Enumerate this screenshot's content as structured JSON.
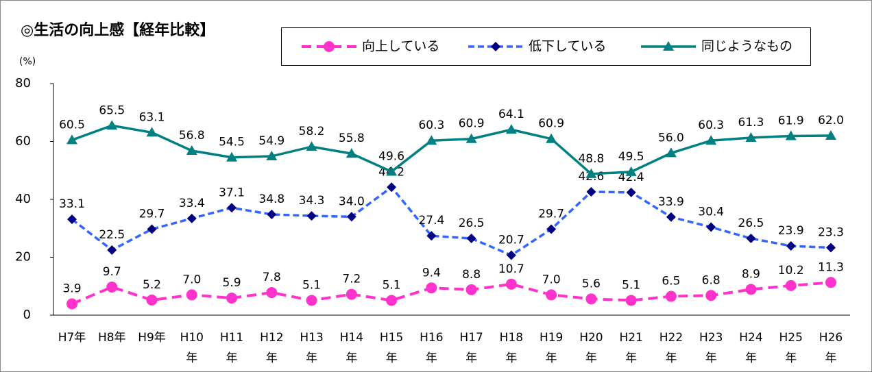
{
  "chart_data": {
    "type": "line",
    "title": "◎生活の向上感【経年比較】",
    "y_label": "(%)",
    "categories": [
      "H7年",
      "H8年",
      "H9年",
      "H10年",
      "H11年",
      "H12年",
      "H13年",
      "H14年",
      "H15年",
      "H16年",
      "H17年",
      "H18年",
      "H19年",
      "H20年",
      "H21年",
      "H22年",
      "H23年",
      "H24年",
      "H25年",
      "H26年"
    ],
    "ylim": [
      0,
      80
    ],
    "yticks": [
      0,
      20,
      40,
      60,
      80
    ],
    "grid": false,
    "series": [
      {
        "name": "向上している",
        "color": "#ff33cc",
        "marker": "circle",
        "dashed": true,
        "values": [
          3.9,
          9.7,
          5.2,
          7.0,
          5.9,
          7.8,
          5.1,
          7.2,
          5.1,
          9.4,
          8.8,
          10.7,
          7.0,
          5.6,
          5.1,
          6.5,
          6.8,
          8.9,
          10.2,
          11.3
        ],
        "value_labels": [
          "3.9",
          "9.7",
          "5.2",
          "7.0",
          "5.9",
          "7.8",
          "5.1",
          "7.2",
          "5.1",
          "9.4",
          "8.8",
          "10.7",
          "7.0",
          "5.6",
          "5.1",
          "6.5",
          "6.8",
          "8.9",
          "10.2",
          "11.3"
        ]
      },
      {
        "name": "低下している",
        "color": "#3366ff",
        "marker_color": "#000080",
        "marker": "diamond",
        "dashed": true,
        "values": [
          33.1,
          22.5,
          29.7,
          33.4,
          37.1,
          34.8,
          34.3,
          34.0,
          44.2,
          27.4,
          26.5,
          20.7,
          29.7,
          42.6,
          42.4,
          33.9,
          30.4,
          26.5,
          23.9,
          23.3
        ],
        "value_labels": [
          "33.1",
          "22.5",
          "29.7",
          "33.4",
          "37.1",
          "34.8",
          "34.3",
          "34.0",
          "44.2",
          "27.4",
          "26.5",
          "20.7",
          "29.7",
          "42.6",
          "42.4",
          "33.9",
          "30.4",
          "26.5",
          "23.9",
          "23.3"
        ]
      },
      {
        "name": "同じようなもの",
        "color": "#008080",
        "marker": "triangle",
        "dashed": false,
        "values": [
          60.5,
          65.5,
          63.1,
          56.8,
          54.5,
          54.9,
          58.2,
          55.8,
          49.6,
          60.3,
          60.9,
          64.1,
          60.9,
          48.8,
          49.5,
          56.0,
          60.3,
          61.3,
          61.9,
          62.0
        ],
        "value_labels": [
          "60.5",
          "65.5",
          "63.1",
          "56.8",
          "54.5",
          "54.9",
          "58.2",
          "55.8",
          "49.6",
          "60.3",
          "60.9",
          "64.1",
          "60.9",
          "48.8",
          "49.5",
          "56.0",
          "60.3",
          "61.3",
          "61.9",
          "62.0"
        ]
      }
    ]
  }
}
